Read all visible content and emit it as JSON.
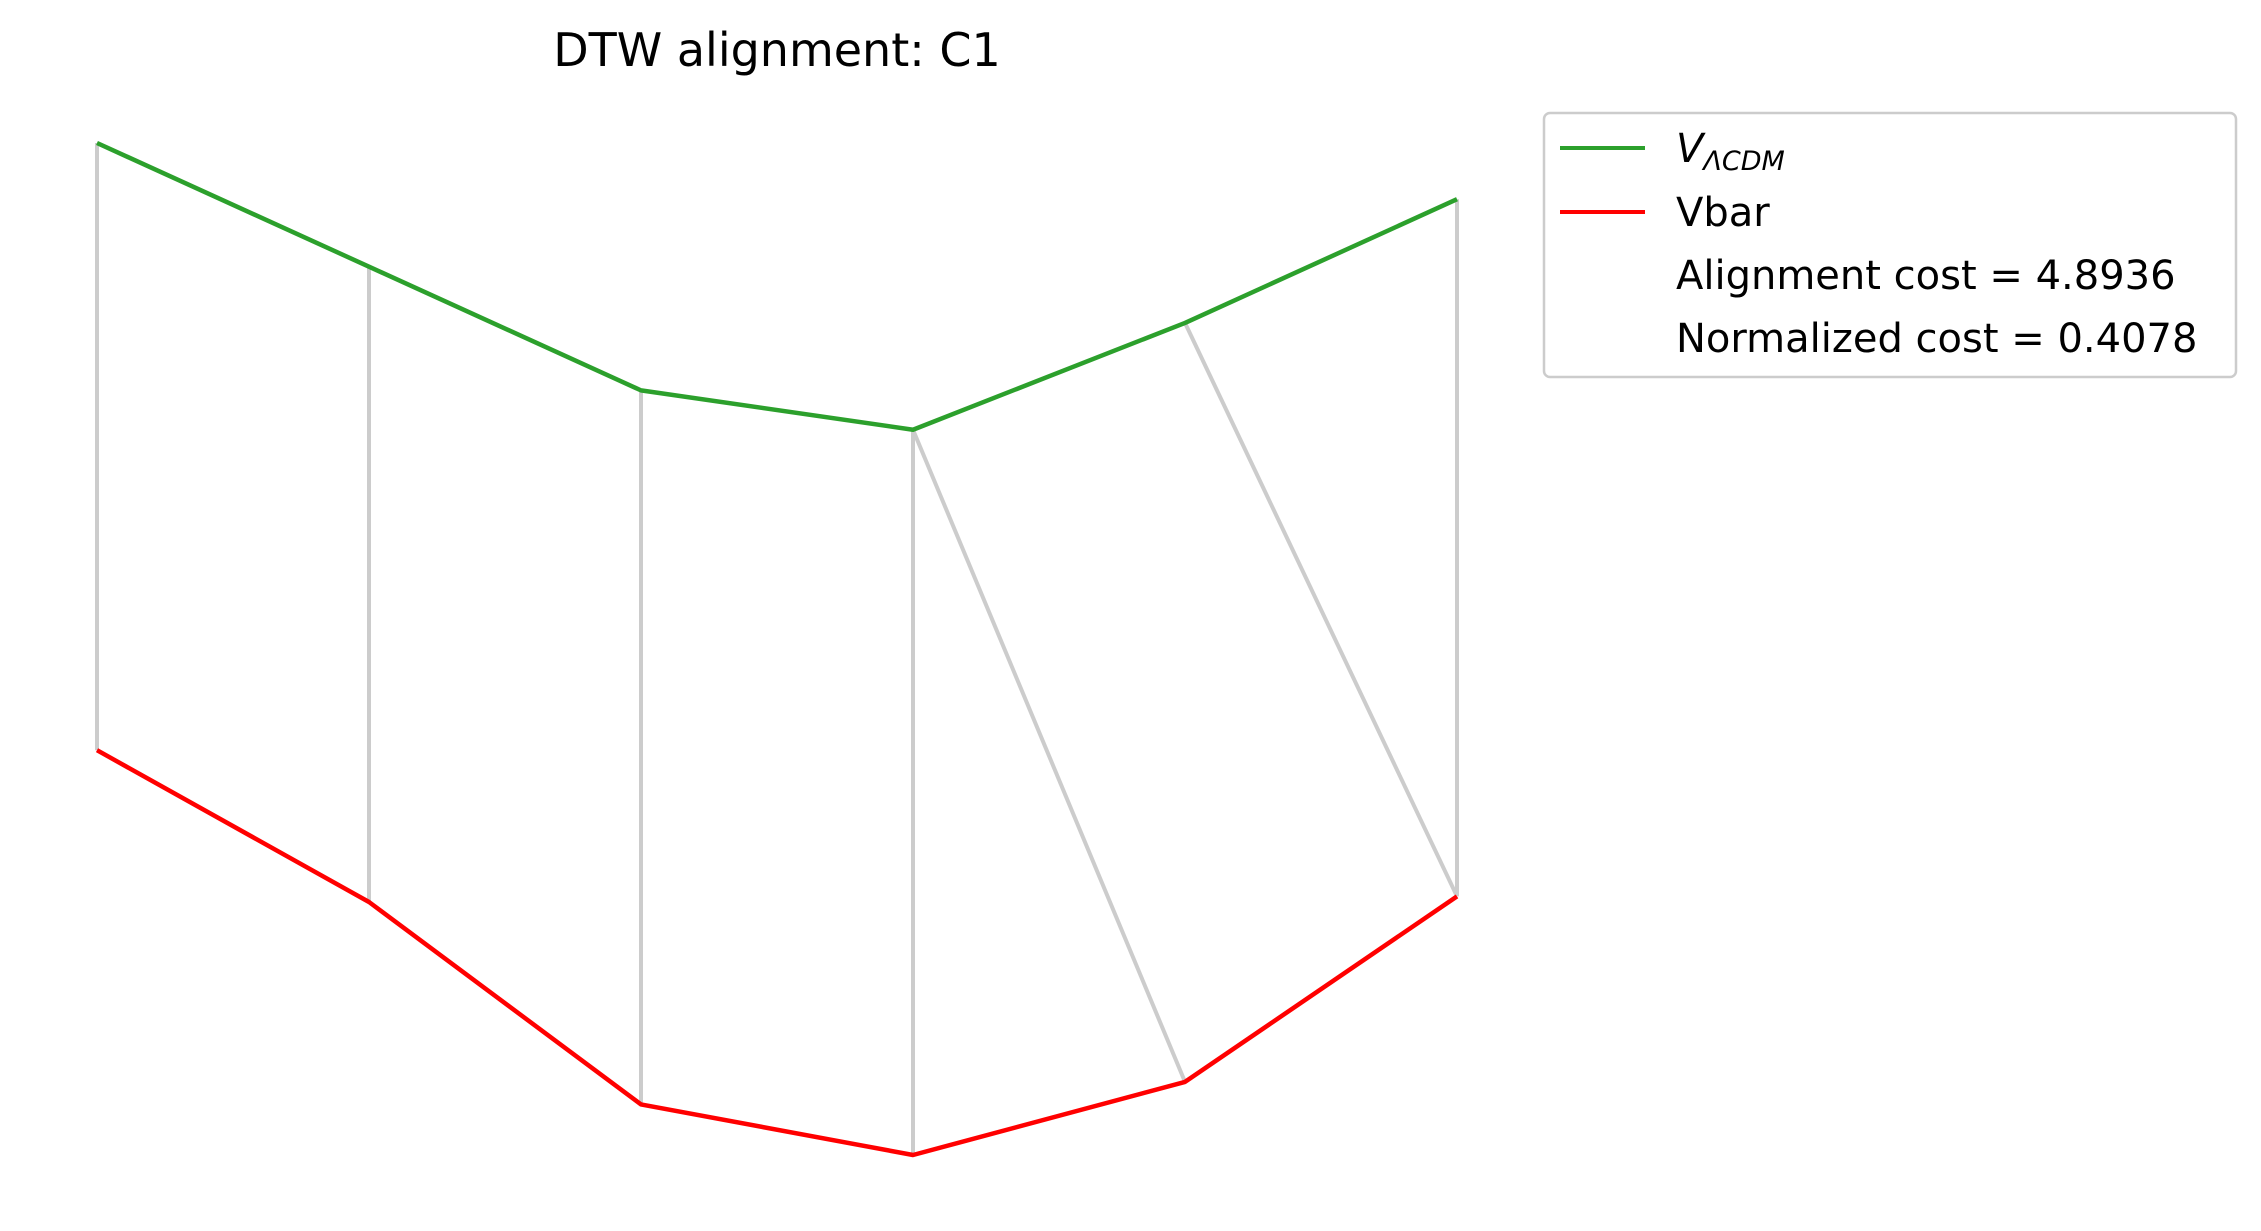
{
  "chart_data": {
    "type": "line",
    "title": "DTW alignment: C1",
    "grid": false,
    "axes_visible": false,
    "legend_position": "outside-top-right",
    "x": [
      1,
      2,
      3,
      4,
      5,
      6
    ],
    "series": [
      {
        "name": "V",
        "name_subscript": "ΛCDM",
        "color": "#2ca02c",
        "values": [
          8.7,
          7.6,
          6.5,
          6.15,
          7.1,
          8.2
        ]
      },
      {
        "name": "Vbar",
        "color": "#ff0000",
        "values": [
          3.3,
          1.95,
          0.15,
          -0.3,
          0.35,
          2.0
        ]
      }
    ],
    "alignment_pairs": [
      [
        0,
        0
      ],
      [
        1,
        1
      ],
      [
        2,
        2
      ],
      [
        3,
        3
      ],
      [
        3,
        4
      ],
      [
        4,
        5
      ],
      [
        5,
        5
      ]
    ],
    "alignment_color": "#cccccc",
    "annotations": [
      "Alignment cost = 4.8936",
      "Normalized cost = 0.4078"
    ]
  }
}
